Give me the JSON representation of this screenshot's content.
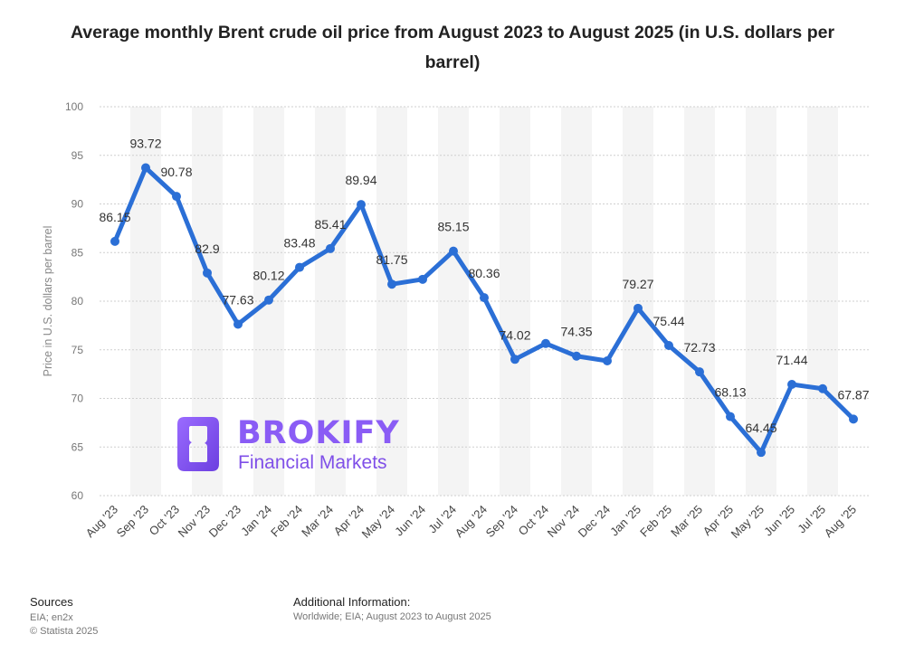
{
  "chart_data": {
    "type": "line",
    "title": "Average monthly Brent crude oil price from August 2023 to August 2025 (in U.S. dollars per barrel)",
    "xlabel": "",
    "ylabel": "Price in U.S. dollars per barrel",
    "ylim": [
      60,
      100
    ],
    "yticks": [
      60,
      65,
      70,
      75,
      80,
      85,
      90,
      95,
      100
    ],
    "grid": true,
    "color": "#2b6fd6",
    "categories": [
      "Aug '23",
      "Sep '23",
      "Oct '23",
      "Nov '23",
      "Dec '23",
      "Jan '24",
      "Feb '24",
      "Mar '24",
      "Apr '24",
      "May '24",
      "Jun '24",
      "Jul '24",
      "Aug '24",
      "Sep '24",
      "Oct '24",
      "Nov '24",
      "Dec '24",
      "Jan '25",
      "Feb '25",
      "Mar '25",
      "Apr '25",
      "May '25",
      "Jun '25",
      "Jul '25",
      "Aug '25"
    ],
    "values": [
      86.15,
      93.72,
      90.78,
      82.9,
      77.63,
      80.12,
      83.48,
      85.41,
      89.94,
      81.75,
      82.25,
      85.15,
      80.36,
      74.02,
      75.65,
      74.35,
      73.86,
      79.27,
      75.44,
      72.73,
      68.13,
      64.45,
      71.44,
      71.0,
      67.87
    ],
    "labels": [
      "86.15",
      "93.72",
      "90.78",
      "82.9",
      "77.63",
      "80.12",
      "83.48",
      "85.41",
      "89.94",
      "81.75",
      null,
      "85.15",
      "80.36",
      "74.02",
      null,
      "74.35",
      null,
      "79.27",
      "75.44",
      "72.73",
      "68.13",
      "64.45",
      "71.44",
      null,
      "67.87"
    ]
  },
  "watermark": {
    "brand": "BROKIFY",
    "tagline": "Financial Markets",
    "color": "#8a5cf5"
  },
  "footer": {
    "sources_heading": "Sources",
    "sources_lines": [
      "EIA; en2x",
      "© Statista 2025"
    ],
    "additional_heading": "Additional Information:",
    "additional_text": "Worldwide; EIA; August 2023 to August 2025"
  }
}
